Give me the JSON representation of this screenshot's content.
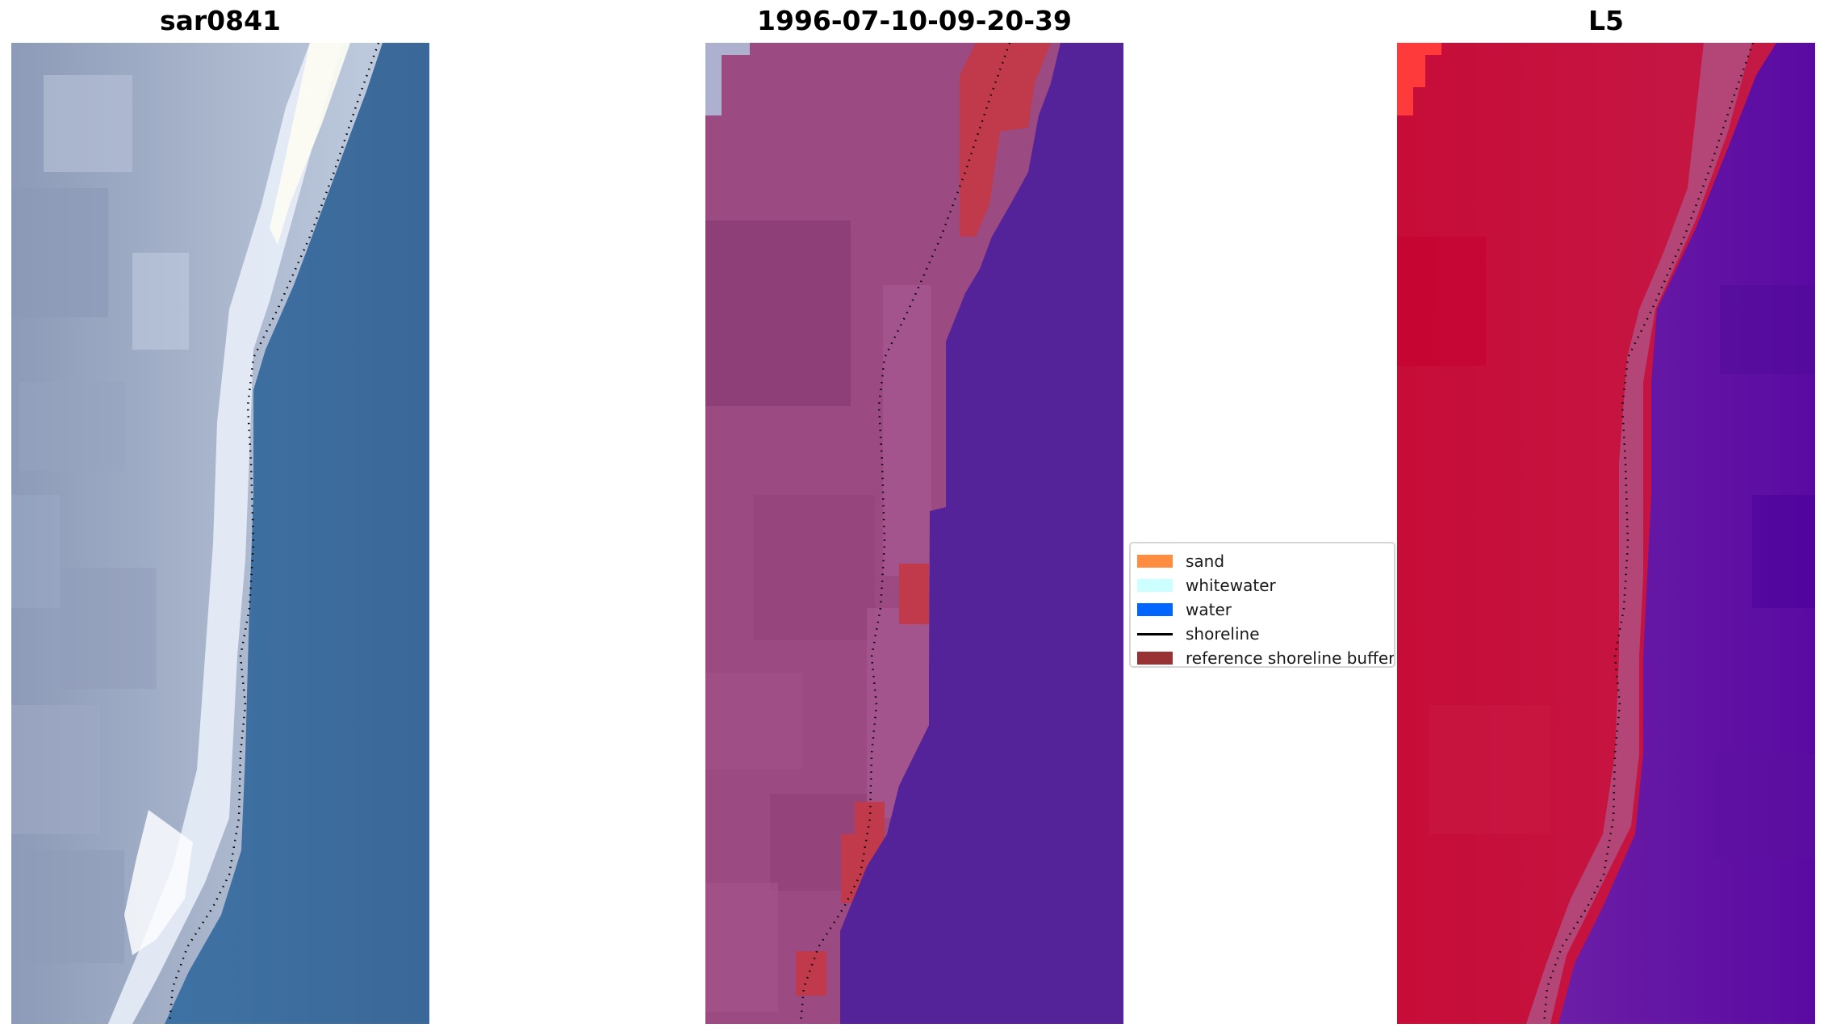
{
  "panels": {
    "rgb_title": "sar0841",
    "classified_title": "1996-07-10-09-20-39",
    "index_title": "L5"
  },
  "legend": {
    "items": [
      {
        "label": "sand",
        "kind": "patch",
        "color": "#ff8c3f"
      },
      {
        "label": "whitewater",
        "kind": "patch",
        "color": "#ccffff"
      },
      {
        "label": "water",
        "kind": "patch",
        "color": "#0066ff"
      },
      {
        "label": "shoreline",
        "kind": "line",
        "color": "#000000"
      },
      {
        "label": "reference shoreline buffer",
        "kind": "patch",
        "color": "#993333"
      }
    ]
  },
  "colors": {
    "rgb_water": "#3a6a9a",
    "rgb_land": "#a9b6cc",
    "rgb_surf": "#f0f4fb",
    "class_land": "#9b4a82",
    "class_water": "#54239a",
    "class_buffer": "#c03a4c",
    "index_land": "#c4173f",
    "index_water": "#5a14a0",
    "index_hot": "#ff3a3a",
    "shoreline": "#000000"
  }
}
